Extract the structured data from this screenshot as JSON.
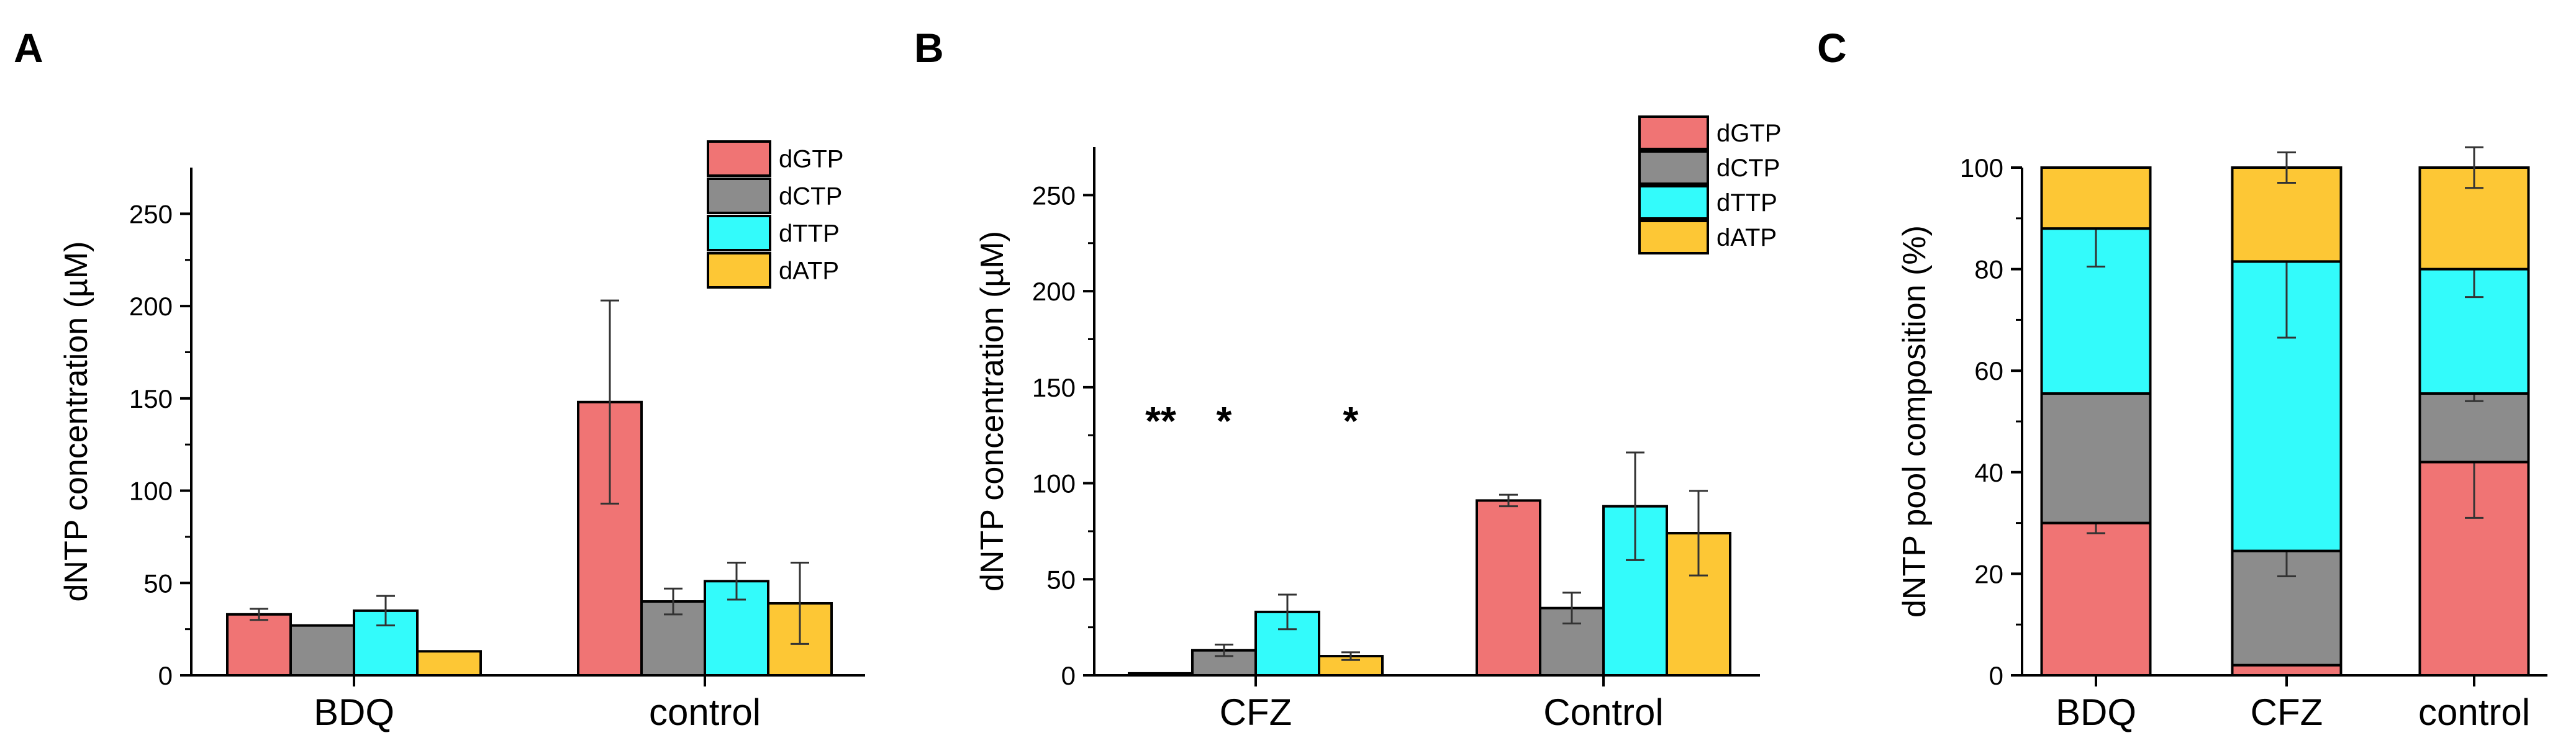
{
  "colors": {
    "dGTP": "#f07474",
    "dCTP": "#8c8c8c",
    "dTTP": "#33fbfb",
    "dATP": "#fdc735"
  },
  "chart_data": [
    {
      "panel": "A",
      "type": "bar",
      "categories": [
        "BDQ",
        "control"
      ],
      "series": [
        {
          "name": "dGTP",
          "values": [
            33,
            148
          ],
          "errors": [
            3,
            55
          ]
        },
        {
          "name": "dCTP",
          "values": [
            27,
            40
          ],
          "errors": [
            0,
            7
          ]
        },
        {
          "name": "dTTP",
          "values": [
            35,
            51
          ],
          "errors": [
            8,
            10
          ]
        },
        {
          "name": "dATP",
          "values": [
            13,
            39
          ],
          "errors": [
            0,
            22
          ]
        }
      ],
      "ylabel": "dNTP concentration (µM)",
      "ylim": [
        0,
        275
      ],
      "yticks": [
        0,
        50,
        100,
        150,
        200,
        250
      ],
      "legend": "top-right",
      "significance": []
    },
    {
      "panel": "B",
      "type": "bar",
      "categories": [
        "CFZ",
        "Control"
      ],
      "series": [
        {
          "name": "dGTP",
          "values": [
            1,
            91
          ],
          "errors": [
            0,
            3
          ]
        },
        {
          "name": "dCTP",
          "values": [
            13,
            35
          ],
          "errors": [
            3,
            8
          ]
        },
        {
          "name": "dTTP",
          "values": [
            33,
            88
          ],
          "errors": [
            9,
            28
          ]
        },
        {
          "name": "dATP",
          "values": [
            10,
            74
          ],
          "errors": [
            2,
            22
          ]
        }
      ],
      "ylabel": "dNTP concentration (µM)",
      "ylim": [
        0,
        275
      ],
      "yticks": [
        0,
        50,
        100,
        150,
        200,
        250
      ],
      "legend": "top-right",
      "significance": [
        {
          "category": "CFZ",
          "series": "dGTP",
          "label": "**"
        },
        {
          "category": "CFZ",
          "series": "dCTP",
          "label": "*"
        },
        {
          "category": "CFZ",
          "series": "dATP",
          "label": "*"
        }
      ]
    },
    {
      "panel": "C",
      "type": "bar",
      "stacked": true,
      "categories": [
        "BDQ",
        "CFZ",
        "control"
      ],
      "series": [
        {
          "name": "dGTP",
          "values": [
            30,
            2,
            42
          ],
          "errors": [
            2,
            0,
            11
          ]
        },
        {
          "name": "dCTP",
          "values": [
            25.5,
            22.5,
            13.5
          ],
          "errors": [
            0,
            5,
            1.5
          ]
        },
        {
          "name": "dTTP",
          "values": [
            32.5,
            57,
            24.5
          ],
          "errors": [
            7.5,
            15,
            5.5
          ]
        },
        {
          "name": "dATP",
          "values": [
            12,
            18.5,
            20
          ],
          "errors": [
            0,
            3,
            4
          ]
        }
      ],
      "ylabel": "dNTP pool composition (%)",
      "ylim": [
        0,
        100
      ],
      "yticks": [
        0,
        20,
        40,
        60,
        80,
        100
      ],
      "legend": "none"
    }
  ]
}
